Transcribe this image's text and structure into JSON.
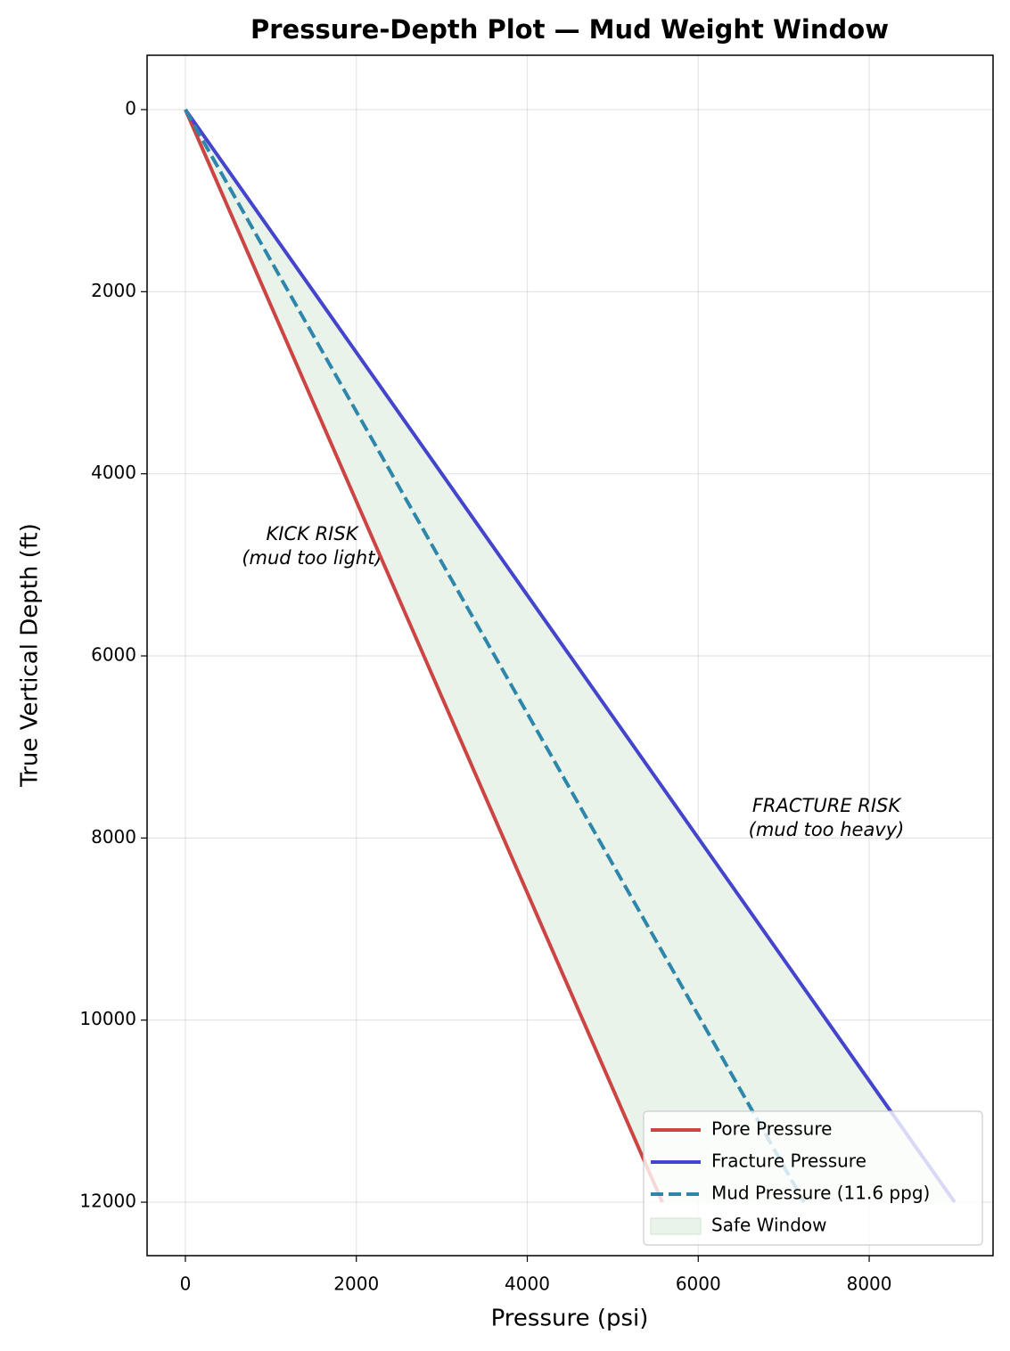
{
  "chart_data": {
    "type": "line",
    "title": "Pressure-Depth Plot — Mud Weight Window",
    "x_label": "Pressure (psi)",
    "y_label": "True Vertical Depth (ft)",
    "depth": [
      0,
      2000,
      4000,
      6000,
      8000,
      10000,
      12000
    ],
    "series": [
      {
        "name": "Pore Pressure",
        "color": "#cc4444",
        "dash": false,
        "values": [
          0,
          930,
          1860,
          2790,
          3720,
          4650,
          5580
        ]
      },
      {
        "name": "Fracture Pressure",
        "color": "#4444cc",
        "dash": false,
        "values": [
          0,
          1500,
          3000,
          4500,
          6000,
          7500,
          9000
        ]
      },
      {
        "name": "Mud Pressure (11.6 ppg)",
        "color": "#2e86ab",
        "dash": true,
        "values": [
          0,
          1206,
          2413,
          3619,
          4826,
          6032,
          7238
        ]
      }
    ],
    "safe_window": {
      "name": "Safe Window",
      "color": "#e9f3e9"
    },
    "annotations": [
      {
        "lines": [
          "KICK RISK",
          "(mud too light)"
        ],
        "color": "#cc4444"
      },
      {
        "lines": [
          "FRACTURE RISK",
          "(mud too heavy)"
        ],
        "color": "#4444cc"
      }
    ],
    "xlim": [
      -448,
      9449
    ],
    "ylim": [
      -597,
      12587
    ],
    "y_inverted": true,
    "xticks": [
      0,
      2000,
      4000,
      6000,
      8000
    ],
    "yticks": [
      0,
      2000,
      4000,
      6000,
      8000,
      10000,
      12000
    ],
    "grid": true,
    "legend": "lower right"
  }
}
